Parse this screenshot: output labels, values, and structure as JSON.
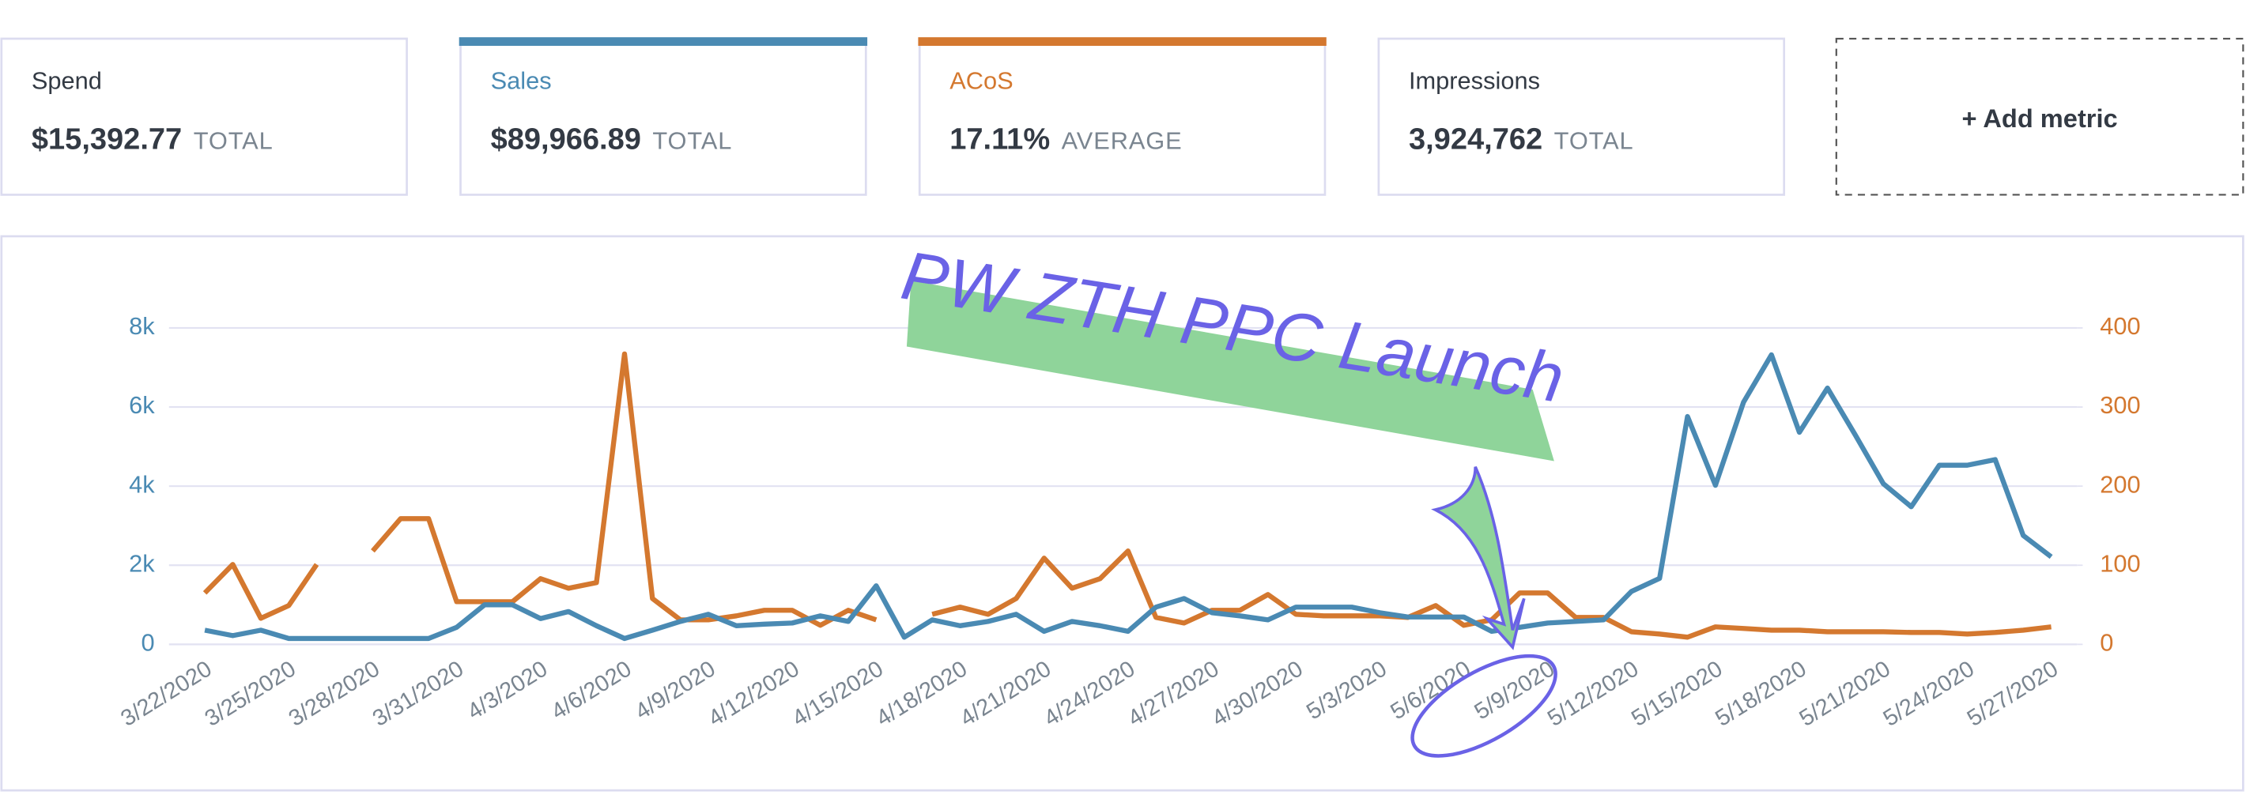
{
  "metrics": [
    {
      "label": "Spend",
      "value": "$15,392.77",
      "unit": "TOTAL"
    },
    {
      "label": "Sales",
      "value": "$89,966.89",
      "unit": "TOTAL"
    },
    {
      "label": "ACoS",
      "value": "17.11%",
      "unit": "AVERAGE"
    },
    {
      "label": "Impressions",
      "value": "3,924,762",
      "unit": "TOTAL"
    }
  ],
  "add_metric": "+ Add metric",
  "chart_data": {
    "type": "line",
    "annotation": "PW ZTH PPC Launch",
    "categories": [
      "3/22/2020",
      null,
      null,
      "3/25/2020",
      null,
      null,
      "3/28/2020",
      null,
      null,
      "3/31/2020",
      null,
      null,
      "4/3/2020",
      null,
      null,
      "4/6/2020",
      null,
      null,
      "4/9/2020",
      null,
      null,
      "4/12/2020",
      null,
      null,
      "4/15/2020",
      null,
      null,
      "4/18/2020",
      null,
      null,
      "4/21/2020",
      null,
      null,
      "4/24/2020",
      null,
      null,
      "4/27/2020",
      null,
      null,
      "4/30/2020",
      null,
      null,
      "5/3/2020",
      null,
      null,
      "5/6/2020",
      null,
      null,
      "5/9/2020",
      null,
      null,
      "5/12/2020",
      null,
      null,
      "5/15/2020",
      null,
      null,
      "5/18/2020",
      null,
      null,
      "5/21/2020",
      null,
      null,
      "5/24/2020",
      null,
      null,
      "5/27/2020"
    ],
    "series": [
      {
        "color": "#4a8ab3",
        "values": [
          360,
          220,
          360,
          150,
          150,
          150,
          150,
          150,
          150,
          430,
          1000,
          1000,
          650,
          830,
          470,
          150,
          360,
          580,
          760,
          470,
          510,
          540,
          720,
          580,
          1480,
          180,
          620,
          470,
          580,
          760,
          330,
          580,
          470,
          330,
          940,
          1160,
          800,
          720,
          620,
          940,
          940,
          940,
          800,
          690,
          690,
          690,
          330,
          430,
          540,
          580,
          620,
          1340,
          1670,
          5760,
          4020,
          6120,
          7320,
          5360,
          6480,
          5290,
          4060,
          3480,
          4530,
          4530,
          4670,
          2750,
          2210
        ]
      },
      {
        "color": "#d4782f",
        "axis": "y2",
        "values": [
          65,
          101,
          33,
          49,
          101,
          null,
          118,
          159,
          159,
          54,
          54,
          54,
          83,
          71,
          78,
          367,
          58,
          31,
          31,
          36,
          43,
          43,
          24,
          43,
          31,
          null,
          38,
          47,
          38,
          58,
          109,
          71,
          83,
          118,
          34,
          27,
          43,
          43,
          63,
          38,
          36,
          36,
          36,
          34,
          49,
          24,
          31,
          65,
          65,
          34,
          34,
          16,
          13,
          9,
          22,
          20,
          18,
          18,
          16,
          16,
          16,
          15,
          15,
          13,
          15,
          18,
          22
        ]
      }
    ],
    "ylim": [
      0,
      8000
    ],
    "yticks": [
      0,
      {
        "value": 2000,
        "label": "2k"
      },
      {
        "value": 4000,
        "label": "4k"
      },
      {
        "value": 6000,
        "label": "6k"
      },
      {
        "value": 8000,
        "label": "8k"
      }
    ],
    "y2lim": [
      0,
      400
    ],
    "y2ticks": [
      0,
      100,
      200,
      300,
      400
    ],
    "grid": true
  }
}
